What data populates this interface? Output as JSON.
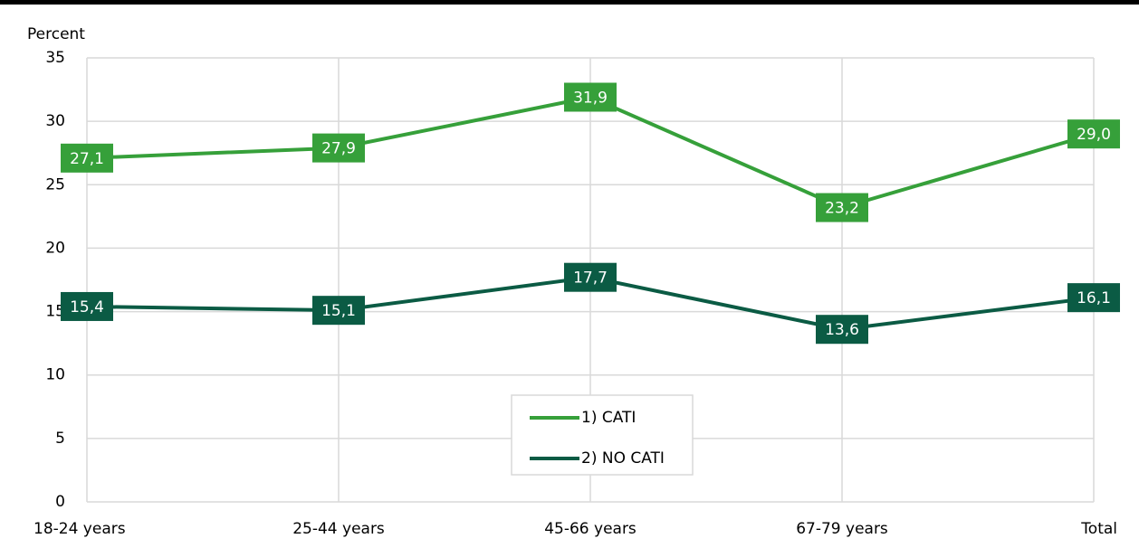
{
  "chart_data": {
    "type": "line",
    "y_axis_label": "Percent",
    "categories": [
      "18-24  years",
      "25-44 years",
      "45-66 years",
      "67-79 years",
      "Total"
    ],
    "series": [
      {
        "name": "1) CATI",
        "color": "#36a03a",
        "values": [
          27.1,
          27.9,
          31.9,
          23.2,
          29
        ],
        "value_labels": [
          "27,1",
          "27,9",
          "31,9",
          "23,2",
          "29,0"
        ]
      },
      {
        "name": "2) NO CATI",
        "color": "#0b5b44",
        "values": [
          15.4,
          15.1,
          17.7,
          13.6,
          16.1
        ],
        "value_labels": [
          "15,4",
          "15,1",
          "17,7",
          "13,6",
          "16,1"
        ]
      }
    ],
    "ylim": [
      0,
      35
    ],
    "yticks": [
      0,
      5,
      10,
      15,
      20,
      25,
      30,
      35
    ],
    "grid": true
  }
}
